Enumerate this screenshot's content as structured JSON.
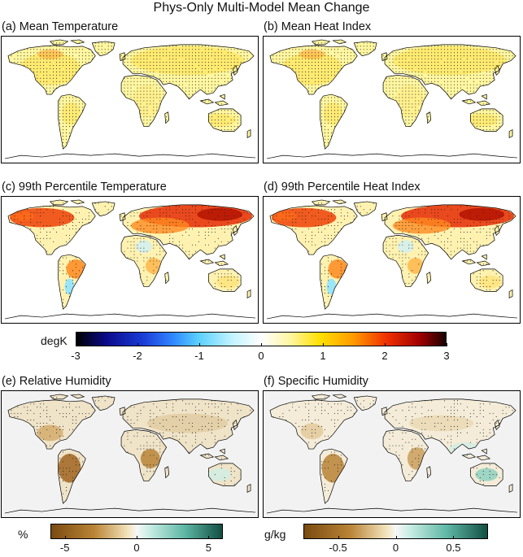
{
  "title": "Phys-Only Multi-Model Mean Change",
  "panels": [
    {
      "label": "(a) Mean Temperature",
      "style": "temp_mean"
    },
    {
      "label": "(b) Mean Heat Index",
      "style": "temp_mean"
    },
    {
      "label": "(c) 99th Percentile Temperature",
      "style": "temp_p99"
    },
    {
      "label": "(d) 99th Percentile Heat Index",
      "style": "temp_p99"
    },
    {
      "label": "(e) Relative Humidity",
      "style": "rh"
    },
    {
      "label": "(f) Specific Humidity",
      "style": "sh"
    }
  ],
  "colorbars": {
    "temperature": {
      "unit": "degK",
      "ticks": [
        "-3",
        "-2",
        "-1",
        "0",
        "1",
        "2",
        "3"
      ],
      "range": [
        -3,
        3
      ]
    },
    "rh": {
      "unit": "%",
      "ticks": [
        "-5",
        "0",
        "5"
      ],
      "range": [
        -6,
        6
      ]
    },
    "sh": {
      "unit": "g/kg",
      "ticks": [
        "-0.5",
        "0",
        "0.5"
      ],
      "range": [
        -0.8,
        0.8
      ]
    }
  },
  "colors": {
    "ocean": "#ffffff",
    "ocean_humidity": "#f2f2f2",
    "coastline": "#000000"
  }
}
